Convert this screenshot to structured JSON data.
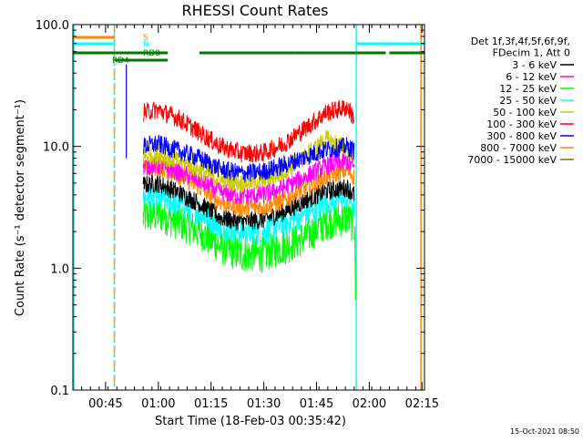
{
  "chart_data": {
    "type": "line",
    "title": "RHESSI Count Rates",
    "xlabel": "Start Time (18-Feb-03 00:35:42)",
    "ylabel": "Count Rate (s⁻¹ detector segment⁻¹)",
    "ylim": [
      0.1,
      100
    ],
    "yscale": "log",
    "xlim_minutes": [
      0,
      100
    ],
    "x_unit": "minutes after 00:35:42",
    "x_ticks": [
      {
        "label": "00:45",
        "t": 9.3
      },
      {
        "label": "01:00",
        "t": 24.3
      },
      {
        "label": "01:15",
        "t": 39.3
      },
      {
        "label": "01:30",
        "t": 54.3
      },
      {
        "label": "01:45",
        "t": 69.3
      },
      {
        "label": "02:00",
        "t": 84.3
      },
      {
        "label": "02:15",
        "t": 99.3
      }
    ],
    "y_ticks": [
      {
        "label": "0.1",
        "v": 0.1
      },
      {
        "label": "1.0",
        "v": 1.0
      },
      {
        "label": "10.0",
        "v": 10.0
      },
      {
        "label": "100.0",
        "v": 100.0
      }
    ],
    "legend": {
      "placement": "right",
      "header": [
        "Det 1f,3f,4f,5f,6f,9f,",
        "FDecim 1, Att 0"
      ]
    },
    "series": [
      {
        "name": "3 - 6 keV",
        "color": "#000000",
        "x": [
          20,
          24,
          30,
          36,
          42,
          48,
          54,
          60,
          66,
          72,
          78,
          80
        ],
        "y": [
          4.8,
          5.0,
          4.2,
          3.4,
          2.6,
          2.4,
          2.5,
          2.9,
          3.6,
          4.3,
          4.6,
          4.0
        ]
      },
      {
        "name": "6 - 12 keV",
        "color": "#ff00ff",
        "x": [
          20,
          24,
          30,
          36,
          42,
          48,
          54,
          60,
          66,
          72,
          78,
          80
        ],
        "y": [
          6.8,
          7.0,
          6.2,
          5.3,
          4.2,
          3.9,
          4.0,
          4.6,
          5.6,
          6.9,
          7.6,
          6.6
        ]
      },
      {
        "name": "12 - 25 keV",
        "color": "#00ff00",
        "x": [
          20,
          24,
          30,
          36,
          42,
          48,
          54,
          60,
          66,
          72,
          78,
          80
        ],
        "y": [
          2.6,
          2.8,
          2.4,
          2.0,
          1.5,
          1.3,
          1.3,
          1.5,
          1.8,
          2.4,
          2.6,
          2.2
        ]
      },
      {
        "name": "25 - 50 keV",
        "color": "#00ffff",
        "x": [
          20,
          24,
          30,
          36,
          42,
          48,
          54,
          60,
          66,
          72,
          78,
          80
        ],
        "y": [
          3.8,
          3.9,
          3.4,
          2.9,
          2.2,
          2.0,
          2.0,
          2.3,
          2.8,
          3.5,
          3.9,
          3.3
        ]
      },
      {
        "name": "50 - 100 keV",
        "color": "#cccc00",
        "x": [
          20,
          24,
          30,
          36,
          42,
          48,
          54,
          60,
          66,
          72,
          78,
          80
        ],
        "y": [
          8.2,
          8.6,
          7.6,
          6.4,
          5.3,
          5.0,
          5.2,
          6.2,
          8.2,
          11.5,
          9.6,
          8.6
        ]
      },
      {
        "name": "100 - 300 keV",
        "color": "#ff0000",
        "x": [
          20,
          24,
          30,
          36,
          42,
          48,
          54,
          60,
          66,
          72,
          78,
          80
        ],
        "y": [
          19,
          20,
          17,
          13,
          10,
          8.8,
          8.8,
          10.5,
          14,
          19,
          21,
          17
        ]
      },
      {
        "name": "300 - 800 keV",
        "color": "#0000ff",
        "x": [
          20,
          24,
          30,
          36,
          42,
          48,
          54,
          60,
          66,
          72,
          78,
          80
        ],
        "y": [
          10,
          10.5,
          9.2,
          8,
          6.5,
          6,
          6.2,
          7,
          8.2,
          9.4,
          10,
          9.2
        ]
      },
      {
        "name": "800 - 7000 keV",
        "color": "#ff8800",
        "x": [
          20,
          24,
          30,
          36,
          42,
          48,
          54,
          60,
          66,
          72,
          78,
          80
        ],
        "y": [
          6.5,
          6.8,
          5.8,
          4.6,
          3.5,
          3.1,
          3.2,
          3.6,
          4.5,
          5.6,
          6.4,
          5.6
        ]
      },
      {
        "name": "7000 - 15000 keV",
        "color": "#996600",
        "x": [],
        "y": []
      }
    ],
    "vertical_lines": [
      {
        "t": 0.3,
        "color": "#00ffff",
        "style": "solid"
      },
      {
        "t": 11.8,
        "color": "#ff8800",
        "style": "dashdot"
      },
      {
        "t": 11.8,
        "color": "#00ffff",
        "style": "dashed"
      },
      {
        "t": 80.6,
        "color": "#00ffff",
        "style": "solid"
      },
      {
        "t": 99.0,
        "color": "#ff8800",
        "style": "solid"
      }
    ],
    "flag_bars": [
      {
        "label": "S",
        "color": "#ff8800",
        "segments": [
          [
            0,
            12
          ]
        ]
      },
      {
        "label": "N",
        "color": "#00ffff",
        "segments": [
          [
            0,
            12
          ],
          [
            80.6,
            100
          ]
        ]
      },
      {
        "label": "RD0",
        "color": "#007700",
        "segments": [
          [
            0,
            12
          ],
          [
            12,
            27
          ],
          [
            36,
            63
          ],
          [
            63,
            89
          ],
          [
            90,
            100
          ]
        ]
      },
      {
        "label": "RD4",
        "color": "#007700",
        "segments": [
          [
            12,
            27
          ]
        ]
      }
    ],
    "spike": {
      "t": 15.2,
      "v": 47
    },
    "footer": "15-Oct-2021 08:50"
  }
}
